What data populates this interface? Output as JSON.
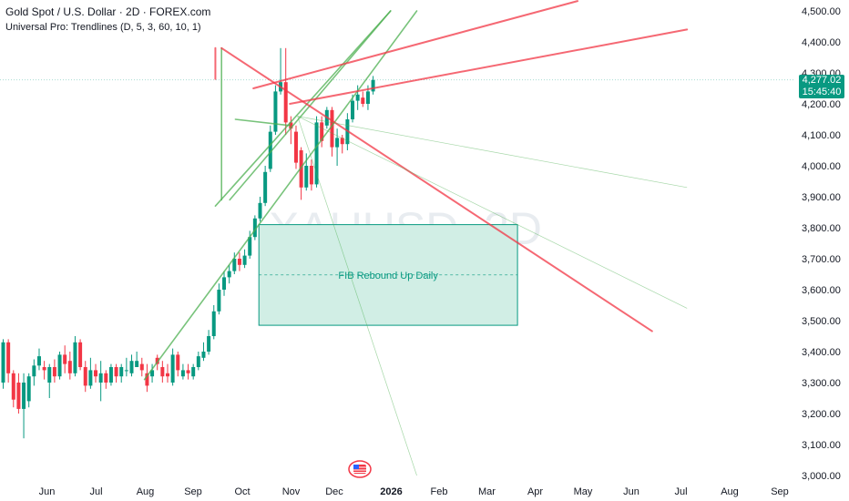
{
  "legend": {
    "title": "Gold Spot / U.S. Dollar · 2D · FOREX.com",
    "indicator": "Universal Pro: Trendlines (D, 5, 3, 60, 10, 1)"
  },
  "watermark": "XAUUSD, 2D",
  "price_label": {
    "value": "4,277.02",
    "countdown": "15:45:40"
  },
  "zone": {
    "label": "FIB Rebound Up Daily",
    "top": 3810,
    "bottom": 3485,
    "start": "Oct 12",
    "end": "Mar 28"
  },
  "colors": {
    "up": "#089981",
    "down": "#f23645",
    "green_line": "#4caf50",
    "red_line": "#f23645",
    "zone_fill": "#d1eee5",
    "zone_border": "#089981",
    "axis_text": "#131722"
  },
  "chart_data": {
    "type": "candlestick",
    "title": "Gold Spot / U.S. Dollar · 2D · FOREX.com",
    "ylim": [
      3000,
      4500
    ],
    "x_tick_labels": [
      "Jun",
      "Jul",
      "Aug",
      "Sep",
      "Oct",
      "Nov",
      "Dec",
      "2026",
      "Feb",
      "Mar",
      "Apr",
      "May",
      "Jun",
      "Jul",
      "Aug",
      "Sep"
    ],
    "y_tick_labels": [
      "4,500.00",
      "4,400.00",
      "4,300.00",
      "4,200.00",
      "4,100.00",
      "4,000.00",
      "3,900.00",
      "3,800.00",
      "3,700.00",
      "3,600.00",
      "3,500.00",
      "3,400.00",
      "3,300.00",
      "3,200.00",
      "3,100.00",
      "3,000.00"
    ],
    "y_ticks": [
      4500,
      4400,
      4300,
      4200,
      4100,
      4000,
      3900,
      3800,
      3700,
      3600,
      3500,
      3400,
      3300,
      3200,
      3100,
      3000
    ],
    "last_price": 4277.02,
    "candles": [
      {
        "o": 3300,
        "c": 3430,
        "h": 3440,
        "l": 3280
      },
      {
        "o": 3430,
        "c": 3330,
        "h": 3440,
        "l": 3300
      },
      {
        "o": 3330,
        "c": 3245,
        "h": 3340,
        "l": 3220
      },
      {
        "o": 3300,
        "c": 3215,
        "h": 3330,
        "l": 3200
      },
      {
        "o": 3215,
        "c": 3300,
        "h": 3330,
        "l": 3120
      },
      {
        "o": 3240,
        "c": 3320,
        "h": 3330,
        "l": 3220
      },
      {
        "o": 3320,
        "c": 3355,
        "h": 3375,
        "l": 3290
      },
      {
        "o": 3355,
        "c": 3385,
        "h": 3410,
        "l": 3340
      },
      {
        "o": 3350,
        "c": 3340,
        "h": 3370,
        "l": 3310
      },
      {
        "o": 3300,
        "c": 3350,
        "h": 3360,
        "l": 3250
      },
      {
        "o": 3350,
        "c": 3320,
        "h": 3375,
        "l": 3300
      },
      {
        "o": 3320,
        "c": 3390,
        "h": 3400,
        "l": 3310
      },
      {
        "o": 3390,
        "c": 3360,
        "h": 3420,
        "l": 3330
      },
      {
        "o": 3370,
        "c": 3330,
        "h": 3400,
        "l": 3310
      },
      {
        "o": 3330,
        "c": 3430,
        "h": 3450,
        "l": 3320
      },
      {
        "o": 3430,
        "c": 3350,
        "h": 3440,
        "l": 3340
      },
      {
        "o": 3350,
        "c": 3290,
        "h": 3370,
        "l": 3270
      },
      {
        "o": 3290,
        "c": 3340,
        "h": 3380,
        "l": 3280
      },
      {
        "o": 3340,
        "c": 3320,
        "h": 3360,
        "l": 3300
      },
      {
        "o": 3300,
        "c": 3330,
        "h": 3370,
        "l": 3240
      },
      {
        "o": 3330,
        "c": 3300,
        "h": 3340,
        "l": 3280
      },
      {
        "o": 3300,
        "c": 3350,
        "h": 3360,
        "l": 3290
      },
      {
        "o": 3350,
        "c": 3320,
        "h": 3360,
        "l": 3300
      },
      {
        "o": 3320,
        "c": 3350,
        "h": 3360,
        "l": 3300
      },
      {
        "o": 3340,
        "c": 3340,
        "h": 3380,
        "l": 3320
      },
      {
        "o": 3330,
        "c": 3370,
        "h": 3390,
        "l": 3320
      },
      {
        "o": 3350,
        "c": 3370,
        "h": 3400,
        "l": 3350
      },
      {
        "o": 3360,
        "c": 3340,
        "h": 3380,
        "l": 3320
      },
      {
        "o": 3330,
        "c": 3290,
        "h": 3360,
        "l": 3270
      },
      {
        "o": 3320,
        "c": 3340,
        "h": 3360,
        "l": 3300
      },
      {
        "o": 3380,
        "c": 3360,
        "h": 3390,
        "l": 3340
      },
      {
        "o": 3350,
        "c": 3320,
        "h": 3370,
        "l": 3300
      },
      {
        "o": 3330,
        "c": 3320,
        "h": 3360,
        "l": 3300
      },
      {
        "o": 3300,
        "c": 3390,
        "h": 3410,
        "l": 3290
      },
      {
        "o": 3390,
        "c": 3340,
        "h": 3400,
        "l": 3320
      },
      {
        "o": 3320,
        "c": 3340,
        "h": 3360,
        "l": 3310
      },
      {
        "o": 3340,
        "c": 3330,
        "h": 3360,
        "l": 3310
      },
      {
        "o": 3320,
        "c": 3350,
        "h": 3360,
        "l": 3310
      },
      {
        "o": 3350,
        "c": 3385,
        "h": 3400,
        "l": 3340
      },
      {
        "o": 3380,
        "c": 3400,
        "h": 3430,
        "l": 3370
      },
      {
        "o": 3400,
        "c": 3450,
        "h": 3470,
        "l": 3390
      },
      {
        "o": 3450,
        "c": 3530,
        "h": 3550,
        "l": 3440
      },
      {
        "o": 3530,
        "c": 3600,
        "h": 3620,
        "l": 3520
      },
      {
        "o": 3600,
        "c": 3640,
        "h": 3660,
        "l": 3580
      },
      {
        "o": 3640,
        "c": 3660,
        "h": 3680,
        "l": 3620
      },
      {
        "o": 3660,
        "c": 3700,
        "h": 3720,
        "l": 3650
      },
      {
        "o": 3700,
        "c": 3680,
        "h": 3720,
        "l": 3660
      },
      {
        "o": 3680,
        "c": 3710,
        "h": 3730,
        "l": 3670
      },
      {
        "o": 3710,
        "c": 3770,
        "h": 3790,
        "l": 3700
      },
      {
        "o": 3770,
        "c": 3830,
        "h": 3840,
        "l": 3760
      },
      {
        "o": 3830,
        "c": 3880,
        "h": 3900,
        "l": 3820
      },
      {
        "o": 3880,
        "c": 3980,
        "h": 4000,
        "l": 3870
      },
      {
        "o": 3990,
        "c": 4110,
        "h": 4130,
        "l": 3980
      },
      {
        "o": 4110,
        "c": 4240,
        "h": 4260,
        "l": 4100
      },
      {
        "o": 4240,
        "c": 4270,
        "h": 4380,
        "l": 4230
      },
      {
        "o": 4270,
        "c": 4140,
        "h": 4380,
        "l": 4100
      },
      {
        "o": 4140,
        "c": 4120,
        "h": 4160,
        "l": 4070
      },
      {
        "o": 4110,
        "c": 4010,
        "h": 4130,
        "l": 3990
      },
      {
        "o": 4050,
        "c": 3930,
        "h": 4060,
        "l": 3890
      },
      {
        "o": 3930,
        "c": 4000,
        "h": 4040,
        "l": 3920
      },
      {
        "o": 4000,
        "c": 3940,
        "h": 4020,
        "l": 3920
      },
      {
        "o": 3940,
        "c": 4140,
        "h": 4160,
        "l": 3930
      },
      {
        "o": 4140,
        "c": 4080,
        "h": 4160,
        "l": 4060
      },
      {
        "o": 4130,
        "c": 4180,
        "h": 4190,
        "l": 4120
      },
      {
        "o": 4180,
        "c": 4060,
        "h": 4190,
        "l": 4030
      },
      {
        "o": 4060,
        "c": 4090,
        "h": 4120,
        "l": 4000
      },
      {
        "o": 4090,
        "c": 4070,
        "h": 4100,
        "l": 4040
      },
      {
        "o": 4070,
        "c": 4150,
        "h": 4170,
        "l": 4050
      },
      {
        "o": 4150,
        "c": 4210,
        "h": 4230,
        "l": 4140
      },
      {
        "o": 4210,
        "c": 4230,
        "h": 4260,
        "l": 4180
      },
      {
        "o": 4220,
        "c": 4200,
        "h": 4240,
        "l": 4190
      },
      {
        "o": 4200,
        "c": 4240,
        "h": 4260,
        "l": 4180
      },
      {
        "o": 4240,
        "c": 4277,
        "h": 4290,
        "l": 4230
      }
    ],
    "trendlines": [
      {
        "color": "green",
        "from": {
          "i": 27.5,
          "p": 3310
        },
        "to": {
          "i": 80.5,
          "p": 4500
        }
      },
      {
        "color": "green",
        "from": {
          "i": 44.1,
          "p": 3890
        },
        "to": {
          "i": 75.4,
          "p": 4500
        }
      },
      {
        "color": "green",
        "from": {
          "i": 41.3,
          "p": 3870
        },
        "to": {
          "i": 75.4,
          "p": 4500
        }
      },
      {
        "color": "green",
        "from": {
          "i": 45.2,
          "p": 4150
        },
        "to": {
          "i": 55.8,
          "p": 4130
        }
      },
      {
        "color": "green",
        "from": {
          "i": 42.5,
          "p": 4380
        },
        "to": {
          "i": 42.5,
          "p": 3890
        }
      },
      {
        "color": "red",
        "from": {
          "i": 42.5,
          "p": 4380
        },
        "to": {
          "i": 126.3,
          "p": 3466
        }
      },
      {
        "color": "red",
        "from": {
          "i": 48.7,
          "p": 4250
        },
        "to": {
          "i": 111.8,
          "p": 4532
        }
      },
      {
        "color": "red",
        "from": {
          "i": 55.8,
          "p": 4200
        },
        "to": {
          "i": 133.1,
          "p": 4440
        }
      },
      {
        "color": "red",
        "from": {
          "i": 41.3,
          "p": 4380
        },
        "to": {
          "i": 41.3,
          "p": 4280
        }
      }
    ],
    "thin_lines": [
      {
        "color": "green",
        "from": {
          "i": 57.3,
          "p": 4160
        },
        "to": {
          "i": 133.1,
          "p": 3540
        }
      },
      {
        "color": "green",
        "from": {
          "i": 57.3,
          "p": 4160
        },
        "to": {
          "i": 133.1,
          "p": 3930
        }
      },
      {
        "color": "green",
        "from": {
          "i": 57.3,
          "p": 4160
        },
        "to": {
          "i": 80.5,
          "p": 3000
        }
      }
    ]
  }
}
